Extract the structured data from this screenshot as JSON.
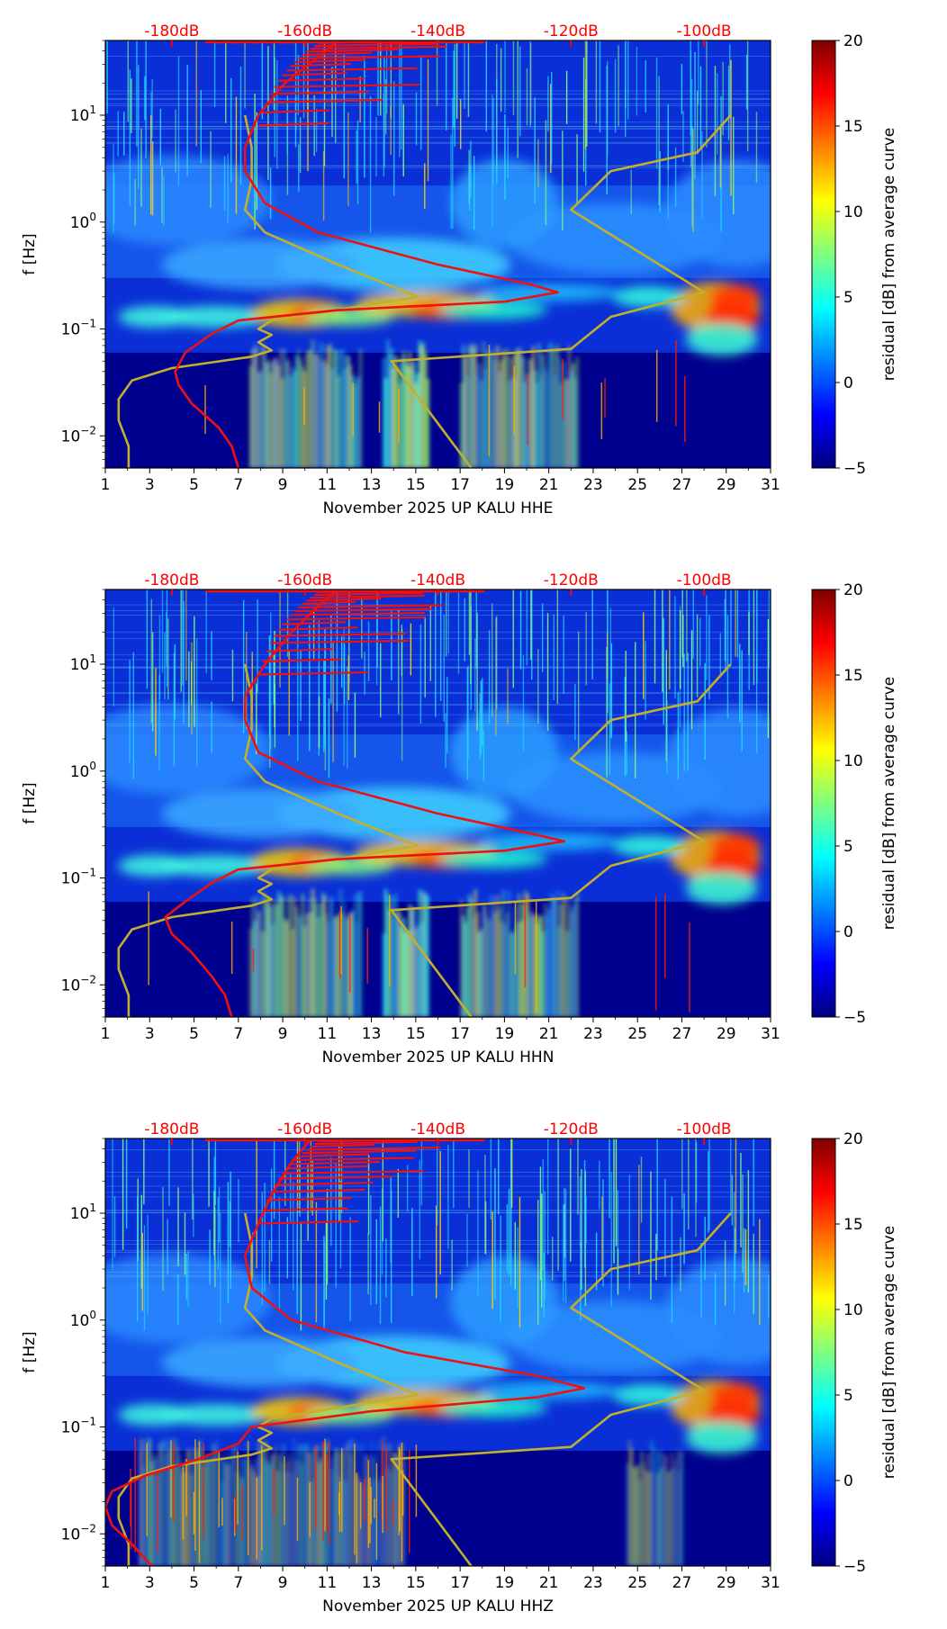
{
  "colors": {
    "ref_curve": "#ee1111",
    "noise_models": "#c2b02c",
    "db_labels": "#ff0000",
    "colormap": [
      "#00007f",
      "#0000ff",
      "#007fff",
      "#00ffff",
      "#7fff7f",
      "#ffff00",
      "#ff7f00",
      "#ff0000",
      "#7f0000"
    ]
  },
  "chart_data": [
    {
      "type": "heatmap",
      "panel": "HHE",
      "title": "",
      "xlabel": "November 2025 UP KALU  HHE",
      "ylabel": "f [Hz]",
      "x_ticks": [
        "1",
        "3",
        "5",
        "7",
        "9",
        "11",
        "13",
        "15",
        "17",
        "19",
        "21",
        "23",
        "25",
        "27",
        "29",
        "31"
      ],
      "xlim": [
        1,
        31
      ],
      "y_scale": "log",
      "ylim": [
        0.005,
        50
      ],
      "y_ticks": [
        {
          "mantissa": "10",
          "exponent": "−2",
          "value": 0.01
        },
        {
          "mantissa": "10",
          "exponent": "−1",
          "value": 0.1
        },
        {
          "mantissa": "10",
          "exponent": "0",
          "value": 1
        },
        {
          "mantissa": "10",
          "exponent": "1",
          "value": 10
        }
      ],
      "db_axis": {
        "labels": [
          "-180dB",
          "-160dB",
          "-140dB",
          "-120dB",
          "-100dB"
        ],
        "values": [
          -180,
          -160,
          -140,
          -120,
          -100
        ],
        "range": [
          -190,
          -90
        ]
      },
      "colorbar": {
        "label": "residual [dB] from average curve",
        "ticks": [
          "20",
          "15",
          "10",
          "5",
          "0",
          "−5"
        ],
        "range": [
          -5,
          20
        ]
      },
      "series": [
        {
          "name": "average PSD curve (red)",
          "unit": "dB",
          "points": [
            [
              -170,
              0.005
            ],
            [
              -171,
              0.008
            ],
            [
              -173,
              0.012
            ],
            [
              -177,
              0.02
            ],
            [
              -179,
              0.03
            ],
            [
              -179.5,
              0.04
            ],
            [
              -178,
              0.06
            ],
            [
              -174,
              0.09
            ],
            [
              -170,
              0.12
            ],
            [
              -155,
              0.15
            ],
            [
              -130,
              0.18
            ],
            [
              -122,
              0.22
            ],
            [
              -126,
              0.26
            ],
            [
              -140,
              0.4
            ],
            [
              -158,
              0.8
            ],
            [
              -166,
              1.5
            ],
            [
              -169,
              3
            ],
            [
              -169,
              5
            ],
            [
              -167,
              10
            ],
            [
              -163,
              20
            ],
            [
              -158,
              35
            ],
            [
              -155,
              50
            ]
          ]
        },
        {
          "name": "noise model low (yellow)",
          "unit": "dB",
          "points": [
            [
              -186.5,
              0.005
            ],
            [
              -186.5,
              0.008
            ],
            [
              -188,
              0.014
            ],
            [
              -188,
              0.022
            ],
            [
              -186,
              0.033
            ],
            [
              -180,
              0.043
            ],
            [
              -168,
              0.055
            ],
            [
              -165,
              0.063
            ],
            [
              -167,
              0.075
            ],
            [
              -165,
              0.088
            ],
            [
              -167,
              0.1
            ],
            [
              -165,
              0.12
            ],
            [
              -143,
              0.2
            ],
            [
              -155,
              0.4
            ],
            [
              -166,
              0.8
            ],
            [
              -169,
              1.3
            ],
            [
              -168,
              2.5
            ],
            [
              -168,
              5
            ],
            [
              -169,
              10
            ]
          ]
        },
        {
          "name": "noise model high (yellow)",
          "unit": "dB",
          "points": [
            [
              -135,
              0.005
            ],
            [
              -147,
              0.05
            ],
            [
              -120,
              0.065
            ],
            [
              -114,
              0.13
            ],
            [
              -100,
              0.22
            ],
            [
              -120,
              1.3
            ],
            [
              -114,
              3
            ],
            [
              -101,
              4.5
            ],
            [
              -96,
              10
            ]
          ]
        }
      ]
    },
    {
      "type": "heatmap",
      "panel": "HHN",
      "title": "",
      "xlabel": "November 2025 UP KALU  HHN",
      "ylabel": "f [Hz]",
      "x_ticks": [
        "1",
        "3",
        "5",
        "7",
        "9",
        "11",
        "13",
        "15",
        "17",
        "19",
        "21",
        "23",
        "25",
        "27",
        "29",
        "31"
      ],
      "xlim": [
        1,
        31
      ],
      "y_scale": "log",
      "ylim": [
        0.005,
        50
      ],
      "y_ticks": [
        {
          "mantissa": "10",
          "exponent": "−2",
          "value": 0.01
        },
        {
          "mantissa": "10",
          "exponent": "−1",
          "value": 0.1
        },
        {
          "mantissa": "10",
          "exponent": "0",
          "value": 1
        },
        {
          "mantissa": "10",
          "exponent": "1",
          "value": 10
        }
      ],
      "db_axis": {
        "labels": [
          "-180dB",
          "-160dB",
          "-140dB",
          "-120dB",
          "-100dB"
        ],
        "values": [
          -180,
          -160,
          -140,
          -120,
          -100
        ],
        "range": [
          -190,
          -90
        ]
      },
      "colorbar": {
        "label": "residual [dB] from average curve",
        "ticks": [
          "20",
          "15",
          "10",
          "5",
          "0",
          "−5"
        ],
        "range": [
          -5,
          20
        ]
      },
      "series": [
        {
          "name": "average PSD curve (red)",
          "unit": "dB",
          "points": [
            [
              -171,
              0.005
            ],
            [
              -172,
              0.008
            ],
            [
              -174,
              0.012
            ],
            [
              -177,
              0.02
            ],
            [
              -180,
              0.03
            ],
            [
              -181,
              0.043
            ],
            [
              -178,
              0.06
            ],
            [
              -174,
              0.09
            ],
            [
              -170,
              0.12
            ],
            [
              -155,
              0.15
            ],
            [
              -130,
              0.18
            ],
            [
              -121,
              0.22
            ],
            [
              -126,
              0.26
            ],
            [
              -140,
              0.4
            ],
            [
              -158,
              0.8
            ],
            [
              -167,
              1.5
            ],
            [
              -169,
              3
            ],
            [
              -169,
              5
            ],
            [
              -166,
              10
            ],
            [
              -162,
              20
            ],
            [
              -158,
              35
            ],
            [
              -155,
              50
            ]
          ]
        },
        {
          "name": "noise model low (yellow)",
          "unit": "dB",
          "points": [
            [
              -186.5,
              0.005
            ],
            [
              -186.5,
              0.008
            ],
            [
              -188,
              0.014
            ],
            [
              -188,
              0.022
            ],
            [
              -186,
              0.033
            ],
            [
              -180,
              0.043
            ],
            [
              -168,
              0.055
            ],
            [
              -165,
              0.063
            ],
            [
              -167,
              0.075
            ],
            [
              -165,
              0.088
            ],
            [
              -167,
              0.1
            ],
            [
              -165,
              0.12
            ],
            [
              -143,
              0.2
            ],
            [
              -155,
              0.4
            ],
            [
              -166,
              0.8
            ],
            [
              -169,
              1.3
            ],
            [
              -168,
              2.5
            ],
            [
              -168,
              5
            ],
            [
              -169,
              10
            ]
          ]
        },
        {
          "name": "noise model high (yellow)",
          "unit": "dB",
          "points": [
            [
              -135,
              0.005
            ],
            [
              -147,
              0.05
            ],
            [
              -120,
              0.065
            ],
            [
              -114,
              0.13
            ],
            [
              -100,
              0.22
            ],
            [
              -120,
              1.3
            ],
            [
              -114,
              3
            ],
            [
              -101,
              4.5
            ],
            [
              -96,
              10
            ]
          ]
        }
      ]
    },
    {
      "type": "heatmap",
      "panel": "HHZ",
      "title": "",
      "xlabel": "November 2025 UP KALU  HHZ",
      "ylabel": "f [Hz]",
      "x_ticks": [
        "1",
        "3",
        "5",
        "7",
        "9",
        "11",
        "13",
        "15",
        "17",
        "19",
        "21",
        "23",
        "25",
        "27",
        "29",
        "31"
      ],
      "xlim": [
        1,
        31
      ],
      "y_scale": "log",
      "ylim": [
        0.005,
        50
      ],
      "y_ticks": [
        {
          "mantissa": "10",
          "exponent": "−2",
          "value": 0.01
        },
        {
          "mantissa": "10",
          "exponent": "−1",
          "value": 0.1
        },
        {
          "mantissa": "10",
          "exponent": "0",
          "value": 1
        },
        {
          "mantissa": "10",
          "exponent": "1",
          "value": 10
        }
      ],
      "db_axis": {
        "labels": [
          "-180dB",
          "-160dB",
          "-140dB",
          "-120dB",
          "-100dB"
        ],
        "values": [
          -180,
          -160,
          -140,
          -120,
          -100
        ],
        "range": [
          -190,
          -90
        ]
      },
      "colorbar": {
        "label": "residual [dB] from average curve",
        "ticks": [
          "20",
          "15",
          "10",
          "5",
          "0",
          "−5"
        ],
        "range": [
          -5,
          20
        ]
      },
      "series": [
        {
          "name": "average PSD curve (red)",
          "unit": "dB",
          "points": [
            [
              -183,
              0.005
            ],
            [
              -186,
              0.008
            ],
            [
              -189,
              0.012
            ],
            [
              -190,
              0.018
            ],
            [
              -189,
              0.025
            ],
            [
              -184,
              0.035
            ],
            [
              -176,
              0.05
            ],
            [
              -170,
              0.07
            ],
            [
              -168,
              0.1
            ],
            [
              -150,
              0.14
            ],
            [
              -125,
              0.19
            ],
            [
              -118,
              0.23
            ],
            [
              -125,
              0.3
            ],
            [
              -145,
              0.5
            ],
            [
              -162,
              1
            ],
            [
              -168,
              2
            ],
            [
              -169,
              4
            ],
            [
              -167,
              8
            ],
            [
              -165,
              15
            ],
            [
              -162,
              30
            ],
            [
              -159,
              50
            ]
          ]
        },
        {
          "name": "noise model low (yellow)",
          "unit": "dB",
          "points": [
            [
              -186.5,
              0.005
            ],
            [
              -186.5,
              0.008
            ],
            [
              -188,
              0.014
            ],
            [
              -188,
              0.022
            ],
            [
              -186,
              0.033
            ],
            [
              -180,
              0.043
            ],
            [
              -168,
              0.055
            ],
            [
              -165,
              0.063
            ],
            [
              -167,
              0.075
            ],
            [
              -165,
              0.088
            ],
            [
              -167,
              0.1
            ],
            [
              -165,
              0.12
            ],
            [
              -143,
              0.2
            ],
            [
              -155,
              0.4
            ],
            [
              -166,
              0.8
            ],
            [
              -169,
              1.3
            ],
            [
              -168,
              2.5
            ],
            [
              -168,
              5
            ],
            [
              -169,
              10
            ]
          ]
        },
        {
          "name": "noise model high (yellow)",
          "unit": "dB",
          "points": [
            [
              -135,
              0.005
            ],
            [
              -147,
              0.05
            ],
            [
              -120,
              0.065
            ],
            [
              -114,
              0.13
            ],
            [
              -100,
              0.22
            ],
            [
              -120,
              1.3
            ],
            [
              -114,
              3
            ],
            [
              -101,
              4.5
            ],
            [
              -96,
              10
            ]
          ]
        }
      ]
    }
  ]
}
